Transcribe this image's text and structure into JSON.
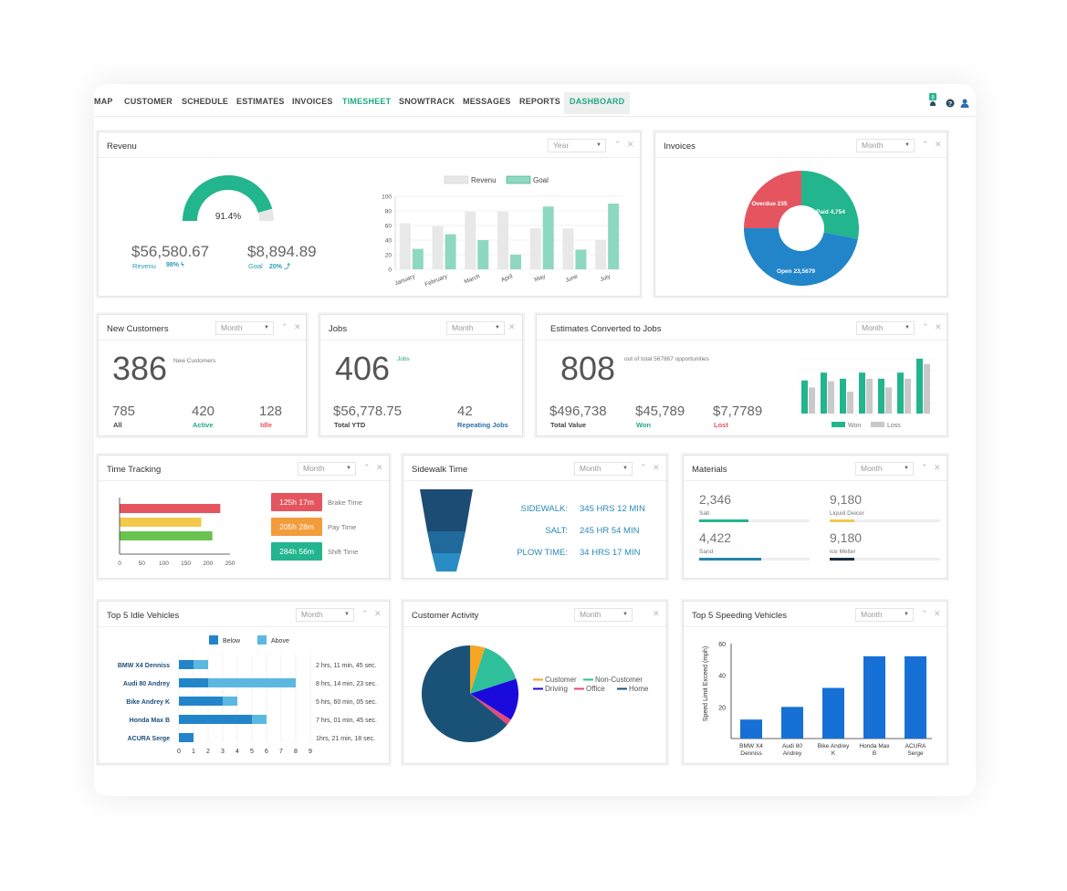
{
  "nav": {
    "items": [
      "MAP",
      "CUSTOMER",
      "SCHEDULE",
      "ESTIMATES",
      "INVOICES",
      "TIMESHEET",
      "SNOWTRACK",
      "MESSAGES",
      "REPORTS",
      "DASHBOARD"
    ],
    "badge": "8"
  },
  "colors": {
    "green": "#22b58e",
    "light_green": "#8ed8c2",
    "gray": "#e8e8e8",
    "red": "#e5555f",
    "blue": "#2385c9",
    "orange": "#f39c3c",
    "teal": "#1f8fb1"
  },
  "revenue": {
    "title": "Revenu",
    "select": "Year",
    "gauge_pct": 91.4,
    "gauge_label": "91.4%",
    "revenue_value": "$56,580.67",
    "revenue_label": "Revenu",
    "revenue_pct": "98%",
    "goal_value": "$8,894.89",
    "goal_label": "Goal",
    "goal_pct": "20%",
    "chart_data": {
      "type": "bar",
      "categories": [
        "January",
        "February",
        "March",
        "April",
        "May",
        "June",
        "July"
      ],
      "series": [
        {
          "name": "Revenu",
          "values": [
            63,
            59,
            79,
            79,
            56,
            56,
            40
          ]
        },
        {
          "name": "Goal",
          "values": [
            28,
            48,
            40,
            20,
            86,
            27,
            90
          ]
        }
      ],
      "ylim": [
        0,
        100
      ],
      "yticks": [
        0,
        20,
        40,
        60,
        80,
        100
      ]
    }
  },
  "invoices": {
    "title": "Invoices",
    "select": "Month",
    "chart_data": {
      "type": "pie",
      "labels": [
        "Paid 4,754",
        "Open 23,5679",
        "Overdue 235"
      ],
      "values": [
        28,
        47,
        25
      ]
    }
  },
  "new_customers": {
    "title": "New Customers",
    "select": "Month",
    "big": "386",
    "big_label": "New Customers",
    "stats": [
      {
        "value": "785",
        "label": "All"
      },
      {
        "value": "420",
        "label": "Active"
      },
      {
        "value": "128",
        "label": "Idle"
      }
    ]
  },
  "jobs": {
    "title": "Jobs",
    "select": "Month",
    "big": "406",
    "big_label": "Jobs",
    "stats": [
      {
        "value": "$56,778.75",
        "label": "Total YTD"
      },
      {
        "value": "42",
        "label": "Repeating Jobs"
      }
    ]
  },
  "estimates": {
    "title": "Estimates Converted to Jobs",
    "select": "Month",
    "big": "808",
    "big_label": "out of total 567867 opportunities",
    "stats": [
      {
        "value": "$496,738",
        "label": "Total Value"
      },
      {
        "value": "$45,789",
        "label": "Won"
      },
      {
        "value": "$7,7789",
        "label": "Lost"
      }
    ],
    "chart_data": {
      "type": "bar",
      "series": [
        {
          "name": "Won",
          "values": [
            38,
            47,
            40,
            47,
            40,
            47,
            63
          ]
        },
        {
          "name": "Loss",
          "values": [
            30,
            37,
            25,
            40,
            30,
            40,
            57
          ]
        }
      ],
      "ylim": [
        0,
        65
      ]
    }
  },
  "time_tracking": {
    "title": "Time Tracking",
    "select": "Month",
    "chart_data": {
      "type": "bar",
      "categories": [
        "Brake Time",
        "Pay Time",
        "Shift Time"
      ],
      "values": [
        228,
        185,
        210
      ],
      "xlim": [
        0,
        250
      ],
      "xticks": [
        "0",
        "50",
        "100",
        "150",
        "200",
        "250"
      ]
    },
    "legend": [
      {
        "value": "125h 17m",
        "label": "Brake Time"
      },
      {
        "value": "205h 28m",
        "label": "Pay Time"
      },
      {
        "value": "284h 56m",
        "label": "Shift Time"
      }
    ]
  },
  "sidewalk": {
    "title": "Sidewalk Time",
    "select": "Month",
    "rows": [
      {
        "label": "SIDEWALK:",
        "value": "345 HRS 12 MIN"
      },
      {
        "label": "SALT:",
        "value": "245 HR 54 MIN"
      },
      {
        "label": "PLOW TIME:",
        "value": "34 HRS 17 MIN"
      }
    ]
  },
  "materials": {
    "title": "Materials",
    "select": "Month",
    "items": [
      {
        "value": "2,346",
        "label": "Salt",
        "fill": 0.45
      },
      {
        "value": "9,180",
        "label": "Liquid Deicer",
        "fill": 0.22
      },
      {
        "value": "4,422",
        "label": "Sand",
        "fill": 0.56
      },
      {
        "value": "9,180",
        "label": "Ice Melter",
        "fill": 0.22
      }
    ]
  },
  "idle": {
    "title": "Top 5 Idle Vehicles",
    "select": "Month",
    "chart_data": {
      "type": "bar",
      "categories": [
        "BMW X4 Denniss",
        "Audi 80 Andrey",
        "Bike Andrey K",
        "Honda Max B",
        "ACURA Serge"
      ],
      "series": [
        {
          "name": "Below",
          "values": [
            1,
            2,
            3,
            5,
            1
          ]
        },
        {
          "name": "Above",
          "values": [
            1,
            6,
            1,
            1,
            0
          ]
        }
      ],
      "xlim": [
        0,
        9
      ],
      "xticks": [
        "0",
        "1",
        "2",
        "3",
        "4",
        "5",
        "6",
        "7",
        "8",
        "9"
      ]
    },
    "times": [
      "2 hrs, 11 min, 45 sec.",
      "8 hrs, 14 min, 23 sec.",
      "5 hrs, 60 min, 05 sec.",
      "7 hrs, 01 min, 45 sec.",
      "1hrs, 21 min, 18 sec."
    ]
  },
  "activity": {
    "title": "Customer Activity",
    "select": "Month",
    "chart_data": {
      "type": "pie",
      "labels": [
        "Customer",
        "Non-Customer",
        "Driving",
        "Office",
        "Home"
      ],
      "values": [
        5,
        15,
        14,
        2,
        64
      ]
    }
  },
  "speeding": {
    "title": "Top 5 Speeding Vehicles",
    "select": "Month",
    "chart_data": {
      "type": "bar",
      "categories": [
        "BMW X4 Denniss",
        "Audi 80 Andrey",
        "Bike Andrey K",
        "Honda Max B",
        "ACURA Serge"
      ],
      "values": [
        12,
        20,
        32,
        52,
        52
      ],
      "ylabel": "Speed Limit Exceed (mph)",
      "ylim": [
        0,
        60
      ],
      "yticks": [
        "20",
        "40",
        "60"
      ]
    }
  }
}
